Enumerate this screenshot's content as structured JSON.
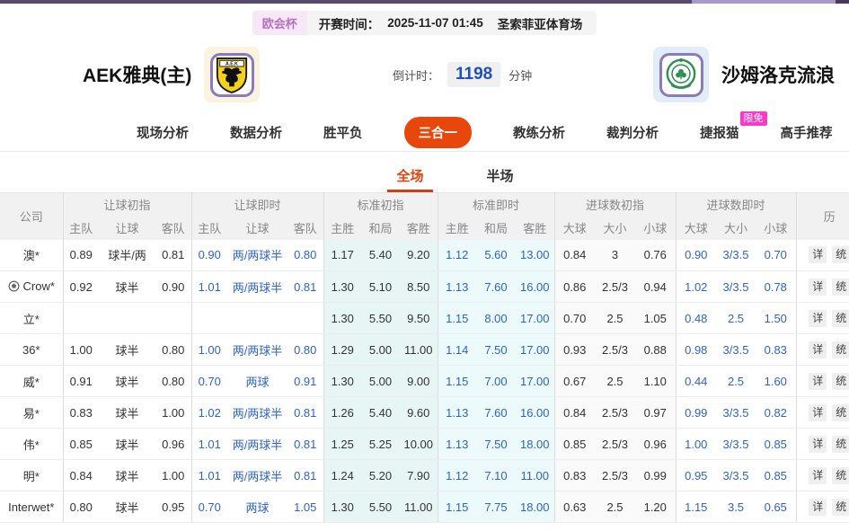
{
  "top_bar": {
    "league": "欧会杯",
    "kickoff_label": "开赛时间：",
    "kickoff_time": "2025-11-07 01:45",
    "venue": "圣索菲亚体育场"
  },
  "match_header": {
    "home_team": "AEK雅典(主)",
    "away_team": "沙姆洛克流浪",
    "countdown_label": "倒计时：",
    "countdown_value": "1198",
    "countdown_unit": "分钟",
    "home_logo_icon": "aek-crest-icon",
    "away_logo_icon": "shamrock-crest-icon"
  },
  "nav": {
    "tabs": [
      {
        "label": "现场分析",
        "active": false
      },
      {
        "label": "数据分析",
        "active": false
      },
      {
        "label": "胜平负",
        "active": false
      },
      {
        "label": "三合一",
        "active": true
      },
      {
        "label": "教练分析",
        "active": false
      },
      {
        "label": "裁判分析",
        "active": false
      },
      {
        "label": "捷报猫",
        "active": false,
        "badge": "限免"
      },
      {
        "label": "高手推荐",
        "active": false
      }
    ]
  },
  "period_tabs": [
    {
      "label": "全场",
      "active": true
    },
    {
      "label": "半场",
      "active": false
    }
  ],
  "odds_table": {
    "company_header": "公司",
    "history_header": "历",
    "detail_button": "详",
    "stats_button": "统",
    "groups": [
      {
        "label": "让球初指",
        "cols": [
          "主队",
          "让球",
          "客队"
        ]
      },
      {
        "label": "让球即时",
        "cols": [
          "主队",
          "让球",
          "客队"
        ]
      },
      {
        "label": "标准初指",
        "cols": [
          "主胜",
          "和局",
          "客胜"
        ]
      },
      {
        "label": "标准即时",
        "cols": [
          "主胜",
          "和局",
          "客胜"
        ]
      },
      {
        "label": "进球数初指",
        "cols": [
          "大球",
          "大小",
          "小球"
        ]
      },
      {
        "label": "进球数即时",
        "cols": [
          "大球",
          "大小",
          "小球"
        ]
      }
    ],
    "rows": [
      {
        "company": "澳*",
        "icon": null,
        "handicap_initial": [
          "0.89",
          "球半/两",
          "0.81"
        ],
        "handicap_live": [
          "0.90",
          "两/两球半",
          "0.80"
        ],
        "standard_initial": [
          "1.17",
          "5.40",
          "9.20"
        ],
        "standard_live": [
          "1.12",
          "5.60",
          "13.00"
        ],
        "goals_initial": [
          "0.84",
          "3",
          "0.76"
        ],
        "goals_live": [
          "0.90",
          "3/3.5",
          "0.70"
        ]
      },
      {
        "company": "Crow*",
        "icon": "soccer-ball-icon",
        "handicap_initial": [
          "0.92",
          "球半",
          "0.90"
        ],
        "handicap_live": [
          "1.01",
          "两/两球半",
          "0.81"
        ],
        "standard_initial": [
          "1.30",
          "5.10",
          "8.50"
        ],
        "standard_live": [
          "1.13",
          "7.60",
          "16.00"
        ],
        "goals_initial": [
          "0.86",
          "2.5/3",
          "0.94"
        ],
        "goals_live": [
          "1.02",
          "3/3.5",
          "0.78"
        ]
      },
      {
        "company": "立*",
        "icon": null,
        "handicap_initial": [
          "",
          "",
          ""
        ],
        "handicap_live": [
          "",
          "",
          ""
        ],
        "standard_initial": [
          "1.30",
          "5.50",
          "9.50"
        ],
        "standard_live": [
          "1.15",
          "8.00",
          "17.00"
        ],
        "goals_initial": [
          "0.70",
          "2.5",
          "1.05"
        ],
        "goals_live": [
          "0.48",
          "2.5",
          "1.50"
        ]
      },
      {
        "company": "36*",
        "icon": null,
        "handicap_initial": [
          "1.00",
          "球半",
          "0.80"
        ],
        "handicap_live": [
          "1.00",
          "两/两球半",
          "0.80"
        ],
        "standard_initial": [
          "1.29",
          "5.00",
          "11.00"
        ],
        "standard_live": [
          "1.14",
          "7.50",
          "17.00"
        ],
        "goals_initial": [
          "0.93",
          "2.5/3",
          "0.88"
        ],
        "goals_live": [
          "0.98",
          "3/3.5",
          "0.83"
        ]
      },
      {
        "company": "威*",
        "icon": null,
        "handicap_initial": [
          "0.91",
          "球半",
          "0.80"
        ],
        "handicap_live": [
          "0.70",
          "两球",
          "0.91"
        ],
        "standard_initial": [
          "1.30",
          "5.00",
          "9.00"
        ],
        "standard_live": [
          "1.15",
          "7.00",
          "17.00"
        ],
        "goals_initial": [
          "0.67",
          "2.5",
          "1.10"
        ],
        "goals_live": [
          "0.44",
          "2.5",
          "1.60"
        ]
      },
      {
        "company": "易*",
        "icon": null,
        "handicap_initial": [
          "0.83",
          "球半",
          "1.00"
        ],
        "handicap_live": [
          "1.02",
          "两/两球半",
          "0.81"
        ],
        "standard_initial": [
          "1.26",
          "5.40",
          "9.60"
        ],
        "standard_live": [
          "1.13",
          "7.60",
          "16.00"
        ],
        "goals_initial": [
          "0.84",
          "2.5/3",
          "0.97"
        ],
        "goals_live": [
          "0.99",
          "3/3.5",
          "0.82"
        ]
      },
      {
        "company": "伟*",
        "icon": null,
        "handicap_initial": [
          "0.85",
          "球半",
          "0.96"
        ],
        "handicap_live": [
          "1.01",
          "两/两球半",
          "0.81"
        ],
        "standard_initial": [
          "1.25",
          "5.25",
          "10.00"
        ],
        "standard_live": [
          "1.13",
          "7.50",
          "18.00"
        ],
        "goals_initial": [
          "0.85",
          "2.5/3",
          "0.96"
        ],
        "goals_live": [
          "1.00",
          "3/3.5",
          "0.85"
        ]
      },
      {
        "company": "明*",
        "icon": null,
        "handicap_initial": [
          "0.84",
          "球半",
          "1.00"
        ],
        "handicap_live": [
          "1.01",
          "两/两球半",
          "0.81"
        ],
        "standard_initial": [
          "1.24",
          "5.20",
          "7.90"
        ],
        "standard_live": [
          "1.12",
          "7.10",
          "11.00"
        ],
        "goals_initial": [
          "0.83",
          "2.5/3",
          "0.99"
        ],
        "goals_live": [
          "0.95",
          "3/3.5",
          "0.85"
        ]
      },
      {
        "company": "Interwet*",
        "icon": null,
        "handicap_initial": [
          "0.80",
          "球半",
          "0.95"
        ],
        "handicap_live": [
          "0.70",
          "两球",
          "1.05"
        ],
        "standard_initial": [
          "1.30",
          "5.50",
          "11.00"
        ],
        "standard_live": [
          "1.15",
          "7.75",
          "18.00"
        ],
        "goals_initial": [
          "0.63",
          "2.5",
          "1.20"
        ],
        "goals_live": [
          "1.15",
          "3.5",
          "0.65"
        ]
      }
    ]
  },
  "colors": {
    "accent_orange": "#e8470c",
    "odds_blue": "#2e63c6",
    "badge_pink": "#f53bc9",
    "top_bar_purple": "#584a6b",
    "countdown_blue": "#1e52b8",
    "standard_initial_bg": "#e7f6f4",
    "standard_live_bg": "#ecfafb"
  }
}
